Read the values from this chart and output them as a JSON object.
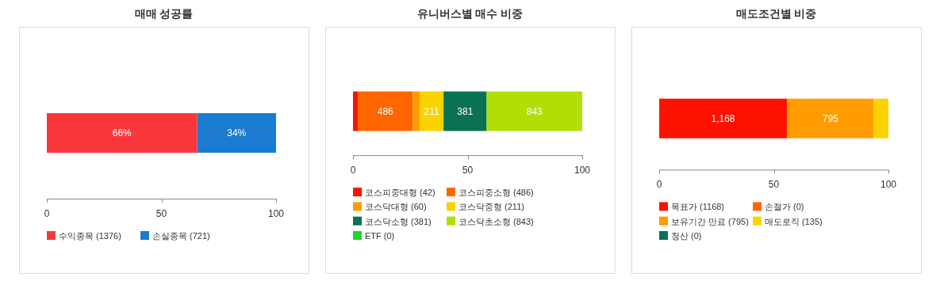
{
  "chart_data": [
    {
      "type": "bar",
      "title": "매매 성공률",
      "categories": [
        null
      ],
      "stacked": true,
      "orientation": "horizontal",
      "xlim": [
        0,
        100
      ],
      "xticks": [
        0,
        50,
        100
      ],
      "legend": "bottom",
      "series": [
        {
          "name": "수익종목 (1376)",
          "color": "#f9373b",
          "values": [
            65.6
          ],
          "value_labels": [
            "66%"
          ]
        },
        {
          "name": "손실종목 (721)",
          "color": "#1a7bd1",
          "values": [
            34.4
          ],
          "value_labels": [
            "34%"
          ]
        }
      ]
    },
    {
      "type": "bar",
      "title": "유니버스별 매수 비중",
      "categories": [
        null
      ],
      "stacked": true,
      "orientation": "horizontal",
      "xlim": [
        0,
        100
      ],
      "xticks": [
        0,
        50,
        100
      ],
      "legend": "bottom",
      "annotations": [
        "486",
        "211",
        "381",
        "843"
      ],
      "series": [
        {
          "name": "코스피중대형 (42)",
          "color": "#ff1100",
          "values": [
            2.1
          ]
        },
        {
          "name": "코스피중소형 (486)",
          "color": "#ff6600",
          "values": [
            24.0
          ]
        },
        {
          "name": "코스닥대형 (60)",
          "color": "#ff9d00",
          "values": [
            3.0
          ]
        },
        {
          "name": "코스닥중형 (211)",
          "color": "#fcd200",
          "values": [
            10.4
          ]
        },
        {
          "name": "코스닥소형 (381)",
          "color": "#0b7155",
          "values": [
            18.8
          ]
        },
        {
          "name": "코스닥초소형 (843)",
          "color": "#b1de05",
          "values": [
            41.7
          ]
        },
        {
          "name": "ETF (0)",
          "color": "#22d42c",
          "values": [
            0
          ]
        }
      ]
    },
    {
      "type": "bar",
      "title": "매도조건별 비중",
      "categories": [
        null
      ],
      "stacked": true,
      "orientation": "horizontal",
      "xlim": [
        0,
        100
      ],
      "xticks": [
        0,
        50,
        100
      ],
      "legend": "bottom",
      "annotations": [
        "1,168",
        "795"
      ],
      "series": [
        {
          "name": "목표가 (1168)",
          "color": "#ff1100",
          "values": [
            55.7
          ]
        },
        {
          "name": "손절가 (0)",
          "color": "#ff6600",
          "values": [
            0
          ]
        },
        {
          "name": "보유기간 만료 (795)",
          "color": "#ff9d00",
          "values": [
            37.9
          ]
        },
        {
          "name": "매도로직 (135)",
          "color": "#fcd200",
          "values": [
            6.4
          ]
        },
        {
          "name": "청산 (0)",
          "color": "#0b7155",
          "values": [
            0
          ]
        }
      ]
    }
  ]
}
